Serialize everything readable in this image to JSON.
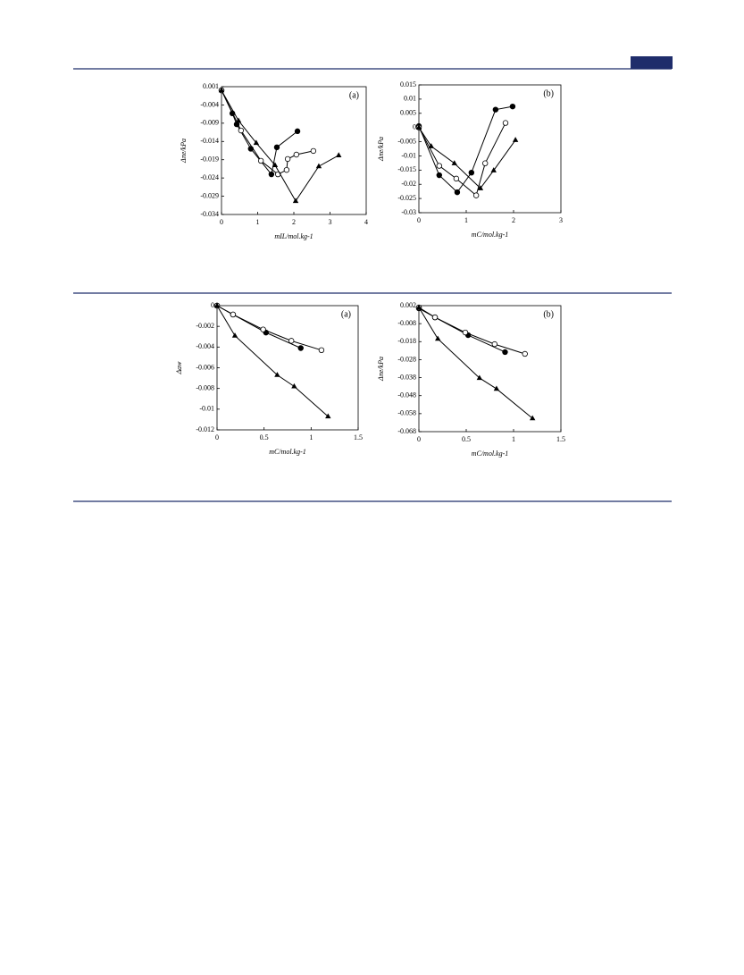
{
  "chart_data": [
    {
      "type": "line",
      "panel": "(a)",
      "xlabel": "mIL/mol.kg-1",
      "ylabel": "Δπe/kPa",
      "xlim": [
        0,
        4
      ],
      "ylim": [
        -0.034,
        0.001
      ],
      "xticks": [
        0,
        1,
        2,
        3,
        4
      ],
      "yticks": [
        0.001,
        -0.004,
        -0.009,
        -0.014,
        -0.019,
        -0.024,
        -0.029,
        -0.034
      ],
      "series": [
        {
          "color": "#000000",
          "marker": "filled-circle",
          "x": [
            0,
            0.3,
            0.42,
            0.81,
            1.38,
            1.53,
            2.1
          ],
          "values": [
            0,
            -0.0063,
            -0.0093,
            -0.016,
            -0.023,
            -0.0156,
            -0.0112
          ]
        },
        {
          "color": "#000000",
          "marker": "open-circle",
          "x": [
            0,
            0.54,
            1.09,
            1.56,
            1.8,
            1.83,
            2.07,
            2.54
          ],
          "values": [
            0,
            -0.011,
            -0.0193,
            -0.023,
            -0.0218,
            -0.0188,
            -0.0176,
            -0.0166
          ]
        },
        {
          "color": "#000000",
          "marker": "triangle",
          "x": [
            0,
            0.47,
            0.96,
            1.48,
            2.05,
            2.69,
            3.24
          ],
          "values": [
            0,
            -0.0083,
            -0.0144,
            -0.0205,
            -0.0303,
            -0.0208,
            -0.0178
          ]
        }
      ]
    },
    {
      "type": "line",
      "panel": "(b)",
      "xlabel": "mC/mol.kg-1",
      "ylabel": "Δπe/kPa",
      "xlim": [
        0,
        3
      ],
      "ylim": [
        -0.03,
        0.015
      ],
      "xticks": [
        0,
        1,
        2,
        3
      ],
      "yticks": [
        0.015,
        0.01,
        0.005,
        0,
        -0.005,
        -0.01,
        -0.015,
        -0.02,
        -0.025,
        -0.03
      ],
      "series": [
        {
          "color": "#000000",
          "marker": "filled-circle",
          "x": [
            0,
            0.43,
            0.81,
            1.11,
            1.62,
            1.98
          ],
          "values": [
            0.0005,
            -0.0168,
            -0.0228,
            -0.0159,
            0.0063,
            0.0074
          ]
        },
        {
          "color": "#000000",
          "marker": "open-circle",
          "x": [
            0,
            0.43,
            0.79,
            1.21,
            1.4,
            1.83
          ],
          "values": [
            0,
            -0.0135,
            -0.018,
            -0.0239,
            -0.0126,
            0.0016
          ]
        },
        {
          "color": "#000000",
          "marker": "triangle",
          "x": [
            0,
            0.26,
            0.75,
            1.3,
            1.58,
            2.04
          ],
          "values": [
            0,
            -0.0066,
            -0.0126,
            -0.0214,
            -0.0151,
            -0.0044
          ]
        }
      ]
    },
    {
      "type": "line",
      "panel": "(a)",
      "xlabel": "mC/mol.kg-1",
      "ylabel": "Δaw",
      "xlim": [
        0,
        1.5
      ],
      "ylim": [
        -0.012,
        0
      ],
      "xticks": [
        0,
        0.5,
        1,
        1.5
      ],
      "yticks": [
        0,
        -0.002,
        -0.004,
        -0.006,
        -0.008,
        -0.01,
        -0.012
      ],
      "series": [
        {
          "color": "#000000",
          "marker": "filled-circle",
          "x": [
            0,
            0.17,
            0.52,
            0.89
          ],
          "values": [
            0,
            -0.00086,
            -0.0026,
            -0.0041
          ]
        },
        {
          "color": "#000000",
          "marker": "open-circle",
          "x": [
            0,
            0.17,
            0.49,
            0.79,
            1.11
          ],
          "values": [
            0,
            -0.00086,
            -0.0023,
            -0.0034,
            -0.0043
          ]
        },
        {
          "color": "#000000",
          "marker": "triangle",
          "x": [
            0,
            0.19,
            0.64,
            0.82,
            1.18
          ],
          "values": [
            0,
            -0.0029,
            -0.0067,
            -0.0078,
            -0.0107
          ]
        }
      ]
    },
    {
      "type": "line",
      "panel": "(b)",
      "xlabel": "mC/mol.kg-1",
      "ylabel": "Δπe/kPa",
      "xlim": [
        0,
        1.5
      ],
      "ylim": [
        -0.068,
        0.002
      ],
      "xticks": [
        0,
        0.5,
        1,
        1.5
      ],
      "yticks": [
        0.002,
        -0.008,
        -0.018,
        -0.028,
        -0.038,
        -0.048,
        -0.058,
        -0.068
      ],
      "series": [
        {
          "color": "#000000",
          "marker": "filled-circle",
          "x": [
            0,
            0.17,
            0.52,
            0.91
          ],
          "values": [
            0.0005,
            -0.0045,
            -0.0144,
            -0.0238
          ]
        },
        {
          "color": "#000000",
          "marker": "open-circle",
          "x": [
            0,
            0.17,
            0.49,
            0.8,
            1.12
          ],
          "values": [
            0.001,
            -0.0045,
            -0.0129,
            -0.0194,
            -0.0248
          ]
        },
        {
          "color": "#000000",
          "marker": "triangle",
          "x": [
            0,
            0.2,
            0.64,
            0.82,
            1.2
          ],
          "values": [
            0.001,
            -0.0164,
            -0.0382,
            -0.0442,
            -0.0606
          ]
        }
      ]
    }
  ]
}
